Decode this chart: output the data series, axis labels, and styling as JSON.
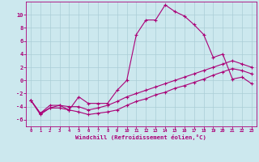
{
  "xlabel": "Windchill (Refroidissement éolien,°C)",
  "background_color": "#cce8ee",
  "grid_color": "#aacdd6",
  "line_color": "#aa0077",
  "xlim": [
    -0.5,
    23.5
  ],
  "ylim": [
    -7,
    12
  ],
  "xticks": [
    0,
    1,
    2,
    3,
    4,
    5,
    6,
    7,
    8,
    9,
    10,
    11,
    12,
    13,
    14,
    15,
    16,
    17,
    18,
    19,
    20,
    21,
    22,
    23
  ],
  "yticks": [
    -6,
    -4,
    -2,
    0,
    2,
    4,
    6,
    8,
    10
  ],
  "line1_x": [
    0,
    1,
    2,
    3,
    4,
    5,
    6,
    7,
    8,
    9,
    10,
    11,
    12,
    13,
    14,
    15,
    16,
    17,
    18,
    19,
    20,
    21,
    22,
    23
  ],
  "line1_y": [
    -3.0,
    -5.0,
    -4.2,
    -3.8,
    -4.5,
    -2.5,
    -3.5,
    -3.5,
    -3.5,
    -1.5,
    0.0,
    7.0,
    9.2,
    9.2,
    11.5,
    10.5,
    9.8,
    8.5,
    7.0,
    3.5,
    4.0,
    0.2,
    0.5,
    -0.5
  ],
  "line2_x": [
    0,
    1,
    2,
    3,
    4,
    5,
    6,
    7,
    8,
    9,
    10,
    11,
    12,
    13,
    14,
    15,
    16,
    17,
    18,
    19,
    20,
    21,
    22,
    23
  ],
  "line2_y": [
    -3.0,
    -5.0,
    -3.8,
    -3.8,
    -4.0,
    -4.0,
    -4.5,
    -4.2,
    -3.8,
    -3.2,
    -2.5,
    -2.0,
    -1.5,
    -1.0,
    -0.5,
    0.0,
    0.5,
    1.0,
    1.5,
    2.0,
    2.5,
    3.0,
    2.5,
    2.0
  ],
  "line3_x": [
    0,
    1,
    2,
    3,
    4,
    5,
    6,
    7,
    8,
    9,
    10,
    11,
    12,
    13,
    14,
    15,
    16,
    17,
    18,
    19,
    20,
    21,
    22,
    23
  ],
  "line3_y": [
    -3.0,
    -5.2,
    -4.2,
    -4.2,
    -4.5,
    -4.8,
    -5.2,
    -5.0,
    -4.8,
    -4.5,
    -3.8,
    -3.2,
    -2.8,
    -2.2,
    -1.8,
    -1.2,
    -0.8,
    -0.3,
    0.2,
    0.8,
    1.3,
    1.8,
    1.5,
    1.0
  ]
}
